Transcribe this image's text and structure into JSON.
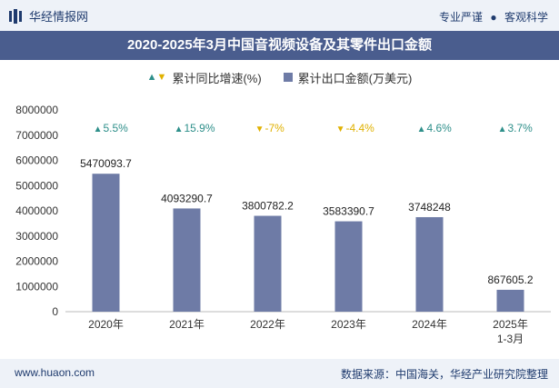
{
  "header": {
    "brand": "华经情报网",
    "slogan_left": "专业严谨",
    "slogan_right": "客观科学"
  },
  "title": "2020-2025年3月中国音视频设备及其零件出口金额",
  "legend": {
    "growth": "累计同比增速(%)",
    "export": "累计出口金额(万美元)"
  },
  "colors": {
    "bar": "#6e7ba6",
    "up": "#2e8f8a",
    "down": "#e0b100",
    "title_band": "#4a5d8e"
  },
  "chart_data": {
    "type": "bar",
    "categories": [
      "2020年",
      "2021年",
      "2022年",
      "2023年",
      "2024年",
      "2025年\n1-3月"
    ],
    "series": [
      {
        "name": "累计出口金额(万美元)",
        "values": [
          5470093.7,
          4093290.7,
          3800782.2,
          3583390.7,
          3748248,
          867605.2
        ],
        "labels": [
          "5470093.7",
          "4093290.7",
          "3800782.2",
          "3583390.7",
          "3748248",
          "867605.2"
        ]
      },
      {
        "name": "累计同比增速(%)",
        "values": [
          5.5,
          15.9,
          -7,
          -4.4,
          4.6,
          3.7
        ],
        "labels": [
          "5.5%",
          "15.9%",
          "-7%",
          "-4.4%",
          "4.6%",
          "3.7%"
        ]
      }
    ],
    "ylim": [
      0,
      8000000
    ],
    "yticks": [
      "0",
      "1000000",
      "2000000",
      "3000000",
      "4000000",
      "5000000",
      "6000000",
      "7000000",
      "8000000"
    ],
    "grid": false
  },
  "footer": {
    "url": "www.huaon.com",
    "source": "数据来源：中国海关，华经产业研究院整理"
  }
}
